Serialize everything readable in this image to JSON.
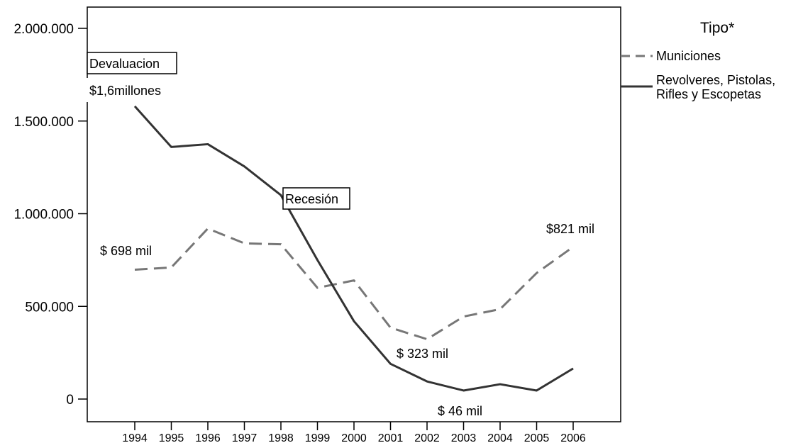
{
  "chart_data": {
    "type": "line",
    "x": [
      "1994",
      "1995",
      "1996",
      "1997",
      "1998",
      "1999",
      "2000",
      "2001",
      "2002",
      "2003",
      "2004",
      "2005",
      "2006"
    ],
    "ylim": [
      0,
      2000000
    ],
    "yticks": [
      0,
      500000,
      1000000,
      1500000,
      2000000
    ],
    "ytick_labels": [
      "0",
      "500.000",
      "1.000.000",
      "1.500.000",
      "2.000.000"
    ],
    "grid": false,
    "legend_title": "Tipo*",
    "legend_placement": "top-right",
    "series": [
      {
        "name": "Municiones",
        "style": "dashed",
        "color": "#777777",
        "values": [
          698000,
          710000,
          920000,
          840000,
          835000,
          600000,
          640000,
          385000,
          323000,
          445000,
          485000,
          680000,
          821000
        ]
      },
      {
        "name": "Revolveres, Pistolas, Rifles y Escopetas",
        "legend_lines": [
          "Revolveres, Pistolas,",
          "Rifles y Escopetas"
        ],
        "style": "solid",
        "color": "#333333",
        "values": [
          1580000,
          1360000,
          1375000,
          1255000,
          1100000,
          750000,
          420000,
          190000,
          95000,
          46000,
          80000,
          46000,
          165000
        ]
      }
    ],
    "annotations": {
      "devaluacion": "Devaluacion",
      "devaluacion_value": "$1,6millones",
      "recesion": "Recesión",
      "municiones_start": "$ 698 mil",
      "municiones_end": "$821 mil",
      "municiones_min": "$ 323 mil",
      "armas_min": "$ 46 mil"
    }
  }
}
